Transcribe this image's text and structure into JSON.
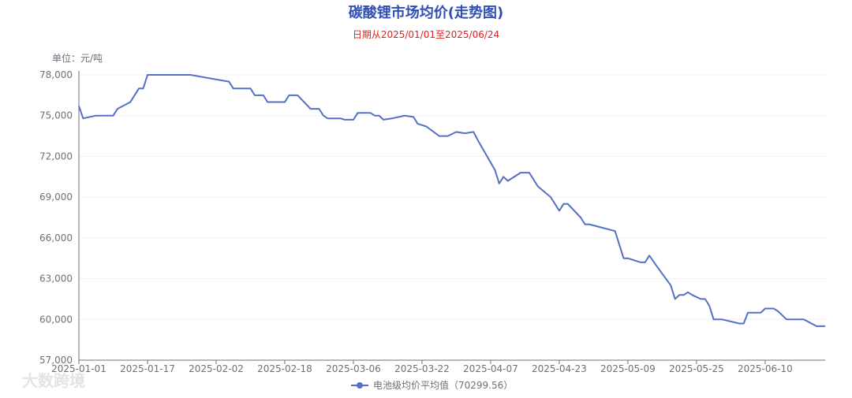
{
  "chart_data": {
    "type": "line",
    "title": "碳酸锂市场均价(走势图)",
    "subtitle": "日期从2025/01/01至2025/06/24",
    "y_label": "单位：元/吨",
    "watermark": "大数跨境",
    "x": [
      "2025-01-01",
      "2025-01-02",
      "2025-01-05",
      "2025-01-09",
      "2025-01-10",
      "2025-01-13",
      "2025-01-15",
      "2025-01-16",
      "2025-01-17",
      "2025-01-27",
      "2025-02-05",
      "2025-02-06",
      "2025-02-10",
      "2025-02-11",
      "2025-02-13",
      "2025-02-14",
      "2025-02-18",
      "2025-02-19",
      "2025-02-21",
      "2025-02-24",
      "2025-02-26",
      "2025-02-27",
      "2025-02-28",
      "2025-03-03",
      "2025-03-04",
      "2025-03-06",
      "2025-03-07",
      "2025-03-10",
      "2025-03-11",
      "2025-03-12",
      "2025-03-13",
      "2025-03-15",
      "2025-03-18",
      "2025-03-20",
      "2025-03-21",
      "2025-03-23",
      "2025-03-26",
      "2025-03-28",
      "2025-03-30",
      "2025-04-01",
      "2025-04-03",
      "2025-04-04",
      "2025-04-08",
      "2025-04-09",
      "2025-04-10",
      "2025-04-11",
      "2025-04-14",
      "2025-04-16",
      "2025-04-17",
      "2025-04-18",
      "2025-04-21",
      "2025-04-23",
      "2025-04-24",
      "2025-04-25",
      "2025-04-28",
      "2025-04-29",
      "2025-04-30",
      "2025-05-06",
      "2025-05-08",
      "2025-05-09",
      "2025-05-12",
      "2025-05-13",
      "2025-05-14",
      "2025-05-16",
      "2025-05-19",
      "2025-05-20",
      "2025-05-21",
      "2025-05-22",
      "2025-05-23",
      "2025-05-24",
      "2025-05-26",
      "2025-05-27",
      "2025-05-28",
      "2025-05-29",
      "2025-05-31",
      "2025-06-04",
      "2025-06-05",
      "2025-06-06",
      "2025-06-09",
      "2025-06-10",
      "2025-06-12",
      "2025-06-13",
      "2025-06-15",
      "2025-06-19",
      "2025-06-22",
      "2025-06-24"
    ],
    "series": [
      {
        "name": "电池级均价平均值（70299.56）",
        "color": "#5470c6",
        "values": [
          75700,
          74800,
          75000,
          75000,
          75500,
          76000,
          77000,
          77000,
          78000,
          78000,
          77500,
          77000,
          77000,
          76500,
          76500,
          76000,
          76000,
          76500,
          76500,
          75500,
          75500,
          75000,
          74800,
          74800,
          74700,
          74700,
          75200,
          75200,
          75000,
          75000,
          74700,
          74800,
          75000,
          74900,
          74400,
          74200,
          73500,
          73500,
          73800,
          73700,
          73800,
          73200,
          71000,
          70000,
          70500,
          70200,
          70800,
          70800,
          70300,
          69800,
          69000,
          68000,
          68500,
          68500,
          67500,
          67000,
          67000,
          66500,
          64500,
          64500,
          64200,
          64200,
          64700,
          63800,
          62500,
          61500,
          61800,
          61800,
          62000,
          61800,
          61500,
          61500,
          61000,
          60000,
          60000,
          59700,
          59700,
          60500,
          60500,
          60800,
          60800,
          60600,
          60000,
          60000,
          59500,
          59500
        ]
      }
    ],
    "xlim": [
      "2025-01-01",
      "2025-06-24"
    ],
    "xticks": [
      "2025-01-01",
      "2025-01-17",
      "2025-02-02",
      "2025-02-18",
      "2025-03-06",
      "2025-03-22",
      "2025-04-07",
      "2025-04-23",
      "2025-05-09",
      "2025-05-25",
      "2025-06-10"
    ],
    "ylim": [
      57000,
      78000
    ],
    "yticks": [
      {
        "value": 57000,
        "label": "57,000"
      },
      {
        "value": 60000,
        "label": "60,000"
      },
      {
        "value": 63000,
        "label": "63,000"
      },
      {
        "value": 66000,
        "label": "66,000"
      },
      {
        "value": 69000,
        "label": "69,000"
      },
      {
        "value": 72000,
        "label": "72,000"
      },
      {
        "value": 75000,
        "label": "75,000"
      },
      {
        "value": 78000,
        "label": "78,000"
      }
    ],
    "grid": true
  }
}
